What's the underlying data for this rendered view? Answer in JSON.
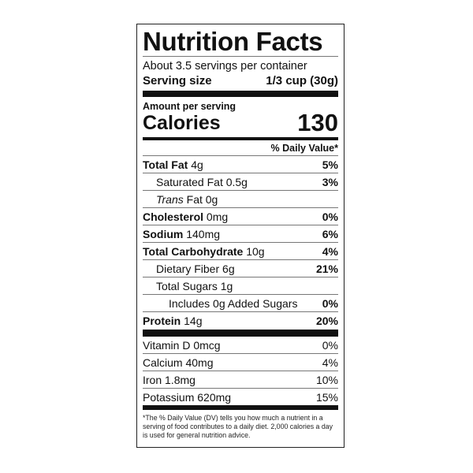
{
  "title": "Nutrition Facts",
  "servings_per_container": "About 3.5 servings per container",
  "serving_size_label": "Serving size",
  "serving_size_value": "1/3 cup (30g)",
  "amount_per_serving": "Amount per serving",
  "calories_label": "Calories",
  "calories_value": "130",
  "daily_value_header": "% Daily Value*",
  "nutrients": [
    {
      "name": "Total Fat",
      "amount": "4g",
      "dv": "5%",
      "bold": true,
      "indent": 0
    },
    {
      "name": "Saturated Fat",
      "amount": "0.5g",
      "dv": "3%",
      "bold": false,
      "indent": 1
    },
    {
      "name": "Trans",
      "name_rest": "Fat",
      "amount": "0g",
      "dv": "",
      "bold": false,
      "indent": 1
    },
    {
      "name": "Cholesterol",
      "amount": "0mg",
      "dv": "0%",
      "bold": true,
      "indent": 0
    },
    {
      "name": "Sodium",
      "amount": "140mg",
      "dv": "6%",
      "bold": true,
      "indent": 0
    },
    {
      "name": "Total Carbohydrate",
      "amount": "10g",
      "dv": "4%",
      "bold": true,
      "indent": 0
    },
    {
      "name": "Dietary Fiber",
      "amount": "6g",
      "dv": "21%",
      "bold": false,
      "indent": 1
    },
    {
      "name": "Total Sugars",
      "amount": "1g",
      "dv": "",
      "bold": false,
      "indent": 1
    },
    {
      "name": "Includes 0g Added Sugars",
      "amount": "",
      "dv": "0%",
      "bold": false,
      "indent": 2
    },
    {
      "name": "Protein",
      "amount": "14g",
      "dv": "20%",
      "bold": true,
      "indent": 0
    }
  ],
  "vitamins": [
    {
      "text": "Vitamin D 0mcg",
      "dv": "0%"
    },
    {
      "text": "Calcium 40mg",
      "dv": "4%"
    },
    {
      "text": "Iron 1.8mg",
      "dv": "10%"
    },
    {
      "text": "Potassium 620mg",
      "dv": "15%"
    }
  ],
  "footnote": "*The % Daily Value (DV) tells you how much a nutrient in a serving of food contributes to a daily diet. 2,000 calories a day is used for general nutrition advice."
}
